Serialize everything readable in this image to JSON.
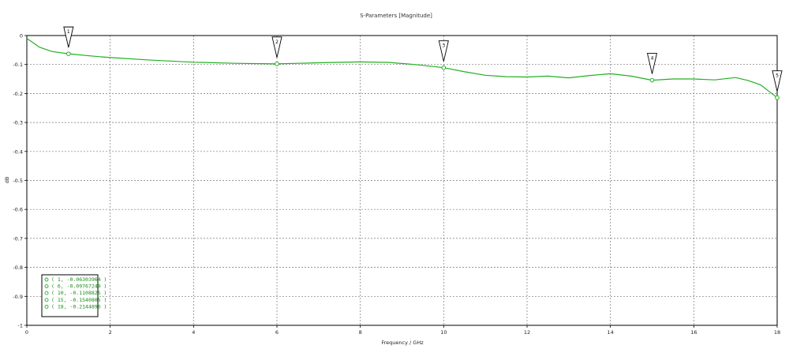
{
  "chart_data": {
    "type": "line",
    "title": "S-Parameters [Magnitude]",
    "xlabel": "Frequency / GHz",
    "ylabel": "dB",
    "xlim": [
      0,
      18
    ],
    "ylim": [
      -1,
      0
    ],
    "x_ticks": [
      "0",
      "2",
      "4",
      "6",
      "8",
      "10",
      "12",
      "14",
      "16",
      "18"
    ],
    "y_ticks": [
      "0",
      "-0.1",
      "-0.2",
      "-0.3",
      "-0.4",
      "-0.5",
      "-0.6",
      "-0.7",
      "-0.8",
      "-0.9",
      "-1"
    ],
    "grid": true,
    "line_color": "#22b022",
    "series": [
      {
        "x": [
          0,
          0.1,
          0.3,
          0.6,
          1.0,
          1.5,
          2.0,
          3.0,
          4.0,
          5.0,
          6.0,
          7.0,
          8.0,
          8.7,
          9.3,
          10.0,
          10.5,
          11.0,
          11.5,
          12.0,
          12.5,
          13.0,
          13.5,
          14.0,
          14.5,
          15.0,
          15.5,
          16.0,
          16.5,
          17.0,
          17.3,
          17.6,
          18.0
        ],
        "y": [
          -0.01,
          -0.02,
          -0.04,
          -0.055,
          -0.063,
          -0.07,
          -0.076,
          -0.085,
          -0.092,
          -0.096,
          -0.0977,
          -0.094,
          -0.091,
          -0.093,
          -0.1,
          -0.1109,
          -0.125,
          -0.137,
          -0.142,
          -0.143,
          -0.14,
          -0.146,
          -0.138,
          -0.132,
          -0.14,
          -0.1541,
          -0.15,
          -0.15,
          -0.153,
          -0.145,
          -0.155,
          -0.17,
          -0.2145
        ]
      }
    ],
    "markers": [
      {
        "id": "1",
        "x": 1,
        "y": -0.06303964
      },
      {
        "id": "2",
        "x": 6,
        "y": -0.09767249
      },
      {
        "id": "3",
        "x": 10,
        "y": -0.1108825
      },
      {
        "id": "4",
        "x": 15,
        "y": -0.1540805
      },
      {
        "id": "5",
        "x": 18,
        "y": -0.2144896
      }
    ],
    "legend": {
      "placement": "bottom-left",
      "entries": [
        "( 1, -0.06303964 )",
        "( 6, -0.09767249 )",
        "( 10, -0.1108825 )",
        "( 15, -0.1540805 )",
        "( 18, -0.2144896 )"
      ]
    }
  }
}
